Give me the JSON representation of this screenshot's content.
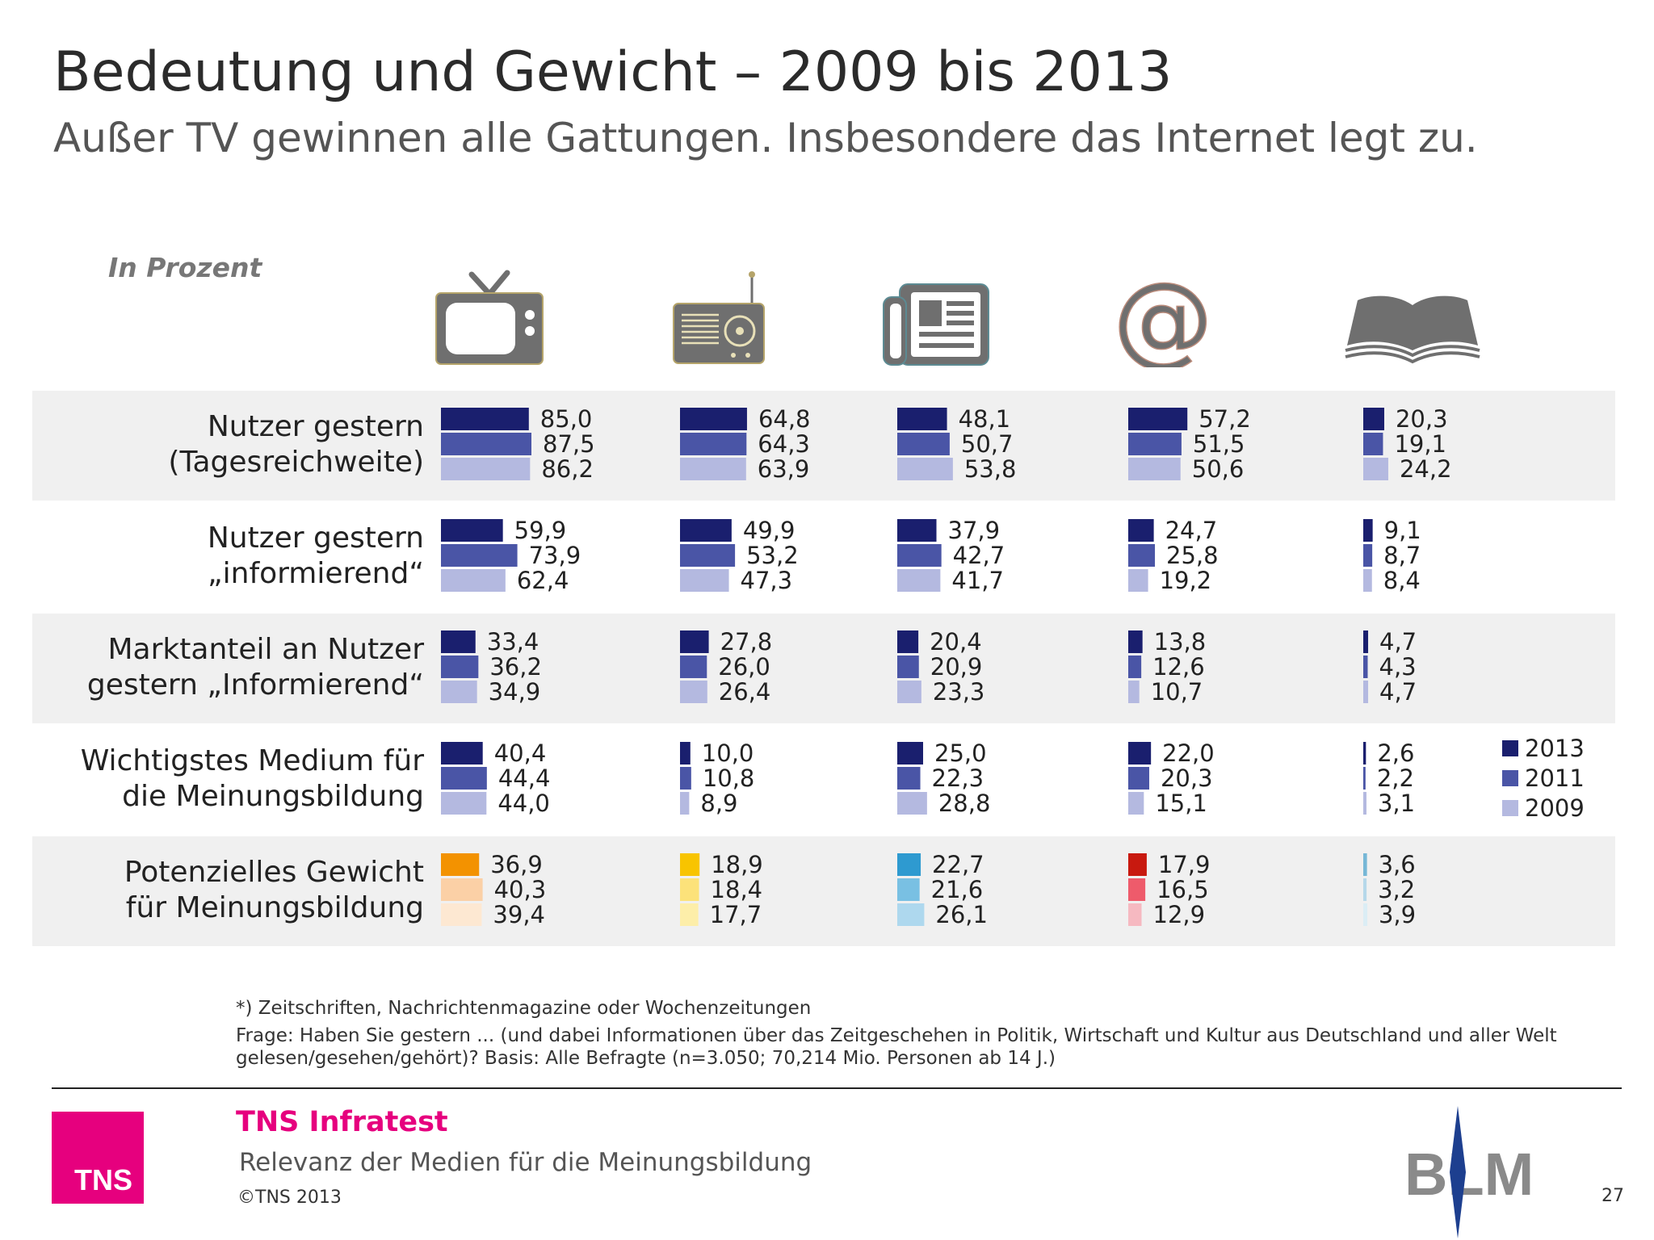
{
  "header": {
    "title": "Bedeutung und Gewicht – 2009 bis 2013",
    "subtitle": "Außer TV gewinnen alle Gattungen. Insbesondere das Internet legt zu."
  },
  "chart_data": {
    "type": "bar",
    "unit_label": "In Prozent",
    "media_icons": [
      "tv-icon",
      "radio-icon",
      "newspaper-icon",
      "internet-at-icon",
      "magazine-book-icon"
    ],
    "rows": [
      {
        "label": "Nutzer gestern\n(Tagesreichweite)",
        "values": [
          [
            85.0,
            87.5,
            86.2
          ],
          [
            64.8,
            64.3,
            63.9
          ],
          [
            48.1,
            50.7,
            53.8
          ],
          [
            57.2,
            51.5,
            50.6
          ],
          [
            20.3,
            19.1,
            24.2
          ]
        ],
        "labels": [
          [
            "85,0",
            "87,5",
            "86,2"
          ],
          [
            "64,8",
            "64,3",
            "63,9"
          ],
          [
            "48,1",
            "50,7",
            "53,8"
          ],
          [
            "57,2",
            "51,5",
            "50,6"
          ],
          [
            "20,3",
            "19,1",
            "24,2"
          ]
        ]
      },
      {
        "label": "Nutzer gestern\n„informierend“",
        "values": [
          [
            59.9,
            73.9,
            62.4
          ],
          [
            49.9,
            53.2,
            47.3
          ],
          [
            37.9,
            42.7,
            41.7
          ],
          [
            24.7,
            25.8,
            19.2
          ],
          [
            9.1,
            8.7,
            8.4
          ]
        ],
        "labels": [
          [
            "59,9",
            "73,9",
            "62,4"
          ],
          [
            "49,9",
            "53,2",
            "47,3"
          ],
          [
            "37,9",
            "42,7",
            "41,7"
          ],
          [
            "24,7",
            "25,8",
            "19,2"
          ],
          [
            "9,1",
            "8,7",
            "8,4"
          ]
        ]
      },
      {
        "label": "Marktanteil an Nutzer\ngestern „Informierend“",
        "values": [
          [
            33.4,
            36.2,
            34.9
          ],
          [
            27.8,
            26.0,
            26.4
          ],
          [
            20.4,
            20.9,
            23.3
          ],
          [
            13.8,
            12.6,
            10.7
          ],
          [
            4.7,
            4.3,
            4.7
          ]
        ],
        "labels": [
          [
            "33,4",
            "36,2",
            "34,9"
          ],
          [
            "27,8",
            "26,0",
            "26,4"
          ],
          [
            "20,4",
            "20,9",
            "23,3"
          ],
          [
            "13,8",
            "12,6",
            "10,7"
          ],
          [
            "4,7",
            "4,3",
            "4,7"
          ]
        ]
      },
      {
        "label": "Wichtigstes Medium für\ndie Meinungsbildung",
        "values": [
          [
            40.4,
            44.4,
            44.0
          ],
          [
            10.0,
            10.8,
            8.9
          ],
          [
            25.0,
            22.3,
            28.8
          ],
          [
            22.0,
            20.3,
            15.1
          ],
          [
            2.6,
            2.2,
            3.1
          ]
        ],
        "labels": [
          [
            "40,4",
            "44,4",
            "44,0"
          ],
          [
            "10,0",
            "10,8",
            "8,9"
          ],
          [
            "25,0",
            "22,3",
            "28,8"
          ],
          [
            "22,0",
            "20,3",
            "15,1"
          ],
          [
            "2,6",
            "2,2",
            "3,1"
          ]
        ]
      },
      {
        "label": "Potenzielles Gewicht\nfür Meinungsbildung",
        "values": [
          [
            36.9,
            40.3,
            39.4
          ],
          [
            18.9,
            18.4,
            17.7
          ],
          [
            22.7,
            21.6,
            26.1
          ],
          [
            17.9,
            16.5,
            12.9
          ],
          [
            3.6,
            3.2,
            3.9
          ]
        ],
        "labels": [
          [
            "36,9",
            "40,3",
            "39,4"
          ],
          [
            "18,9",
            "18,4",
            "17,7"
          ],
          [
            "22,7",
            "21,6",
            "26,1"
          ],
          [
            "17,9",
            "16,5",
            "12,9"
          ],
          [
            "3,6",
            "3,2",
            "3,9"
          ]
        ]
      }
    ],
    "legend": [
      {
        "name": "2013",
        "color": "#1a1f6e"
      },
      {
        "name": "2011",
        "color": "#4a55a6"
      },
      {
        "name": "2009",
        "color": "#b4b9e0"
      }
    ],
    "series_colors": [
      "#1a1f6e",
      "#4a55a6",
      "#b4b9e0"
    ],
    "highlight_row_colors": [
      [
        "#f39200",
        "#fbd0a6",
        "#fde8d2"
      ],
      [
        "#f8c400",
        "#fce27a",
        "#fdeea9"
      ],
      [
        "#2e9ad0",
        "#79c0e3",
        "#aed8ee"
      ],
      [
        "#c8190f",
        "#ee5b6b",
        "#f6b9c1"
      ],
      [
        "#76b7d6",
        "#b5d8ea",
        "#dbedf5"
      ]
    ],
    "row_background": "#f0f0f0",
    "legend_position": "right"
  },
  "footnotes": {
    "note": "*) Zeitschriften, Nachrichtenmagazine oder Wochenzeitungen",
    "question_line1": "Frage: Haben Sie gestern ... (und dabei Informationen über das Zeitgeschehen in Politik, Wirtschaft und Kultur aus Deutschland und aller Welt",
    "question_line2": "gelesen/gesehen/gehört)? Basis: Alle Befragte (n=3.050; 70,214 Mio. Personen ab 14 J.)"
  },
  "footer": {
    "logo_text": "TNS",
    "company": "TNS Infratest",
    "report_title": "Relevanz der Medien für die Meinungsbildung",
    "copyright": "©TNS 2013",
    "partner_logo": "BLM",
    "page_number": "27"
  }
}
